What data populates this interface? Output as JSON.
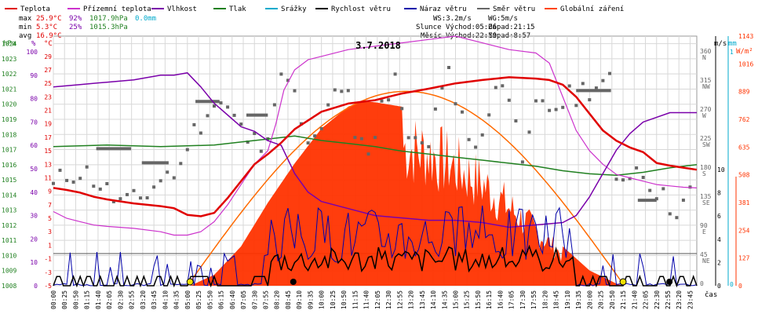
{
  "legend": [
    {
      "label": "Teplota",
      "color": "#e00000"
    },
    {
      "label": "Přízemní teplota",
      "color": "#cc33cc"
    },
    {
      "label": "Vlhkost",
      "color": "#7a00aa"
    },
    {
      "label": "Tlak",
      "color": "#208020"
    },
    {
      "label": "Srážky",
      "color": "#00aacc"
    },
    {
      "label": "Rychlost větru",
      "color": "#000000"
    },
    {
      "label": "Náraz větru",
      "color": "#0000aa"
    },
    {
      "label": "Směr větru",
      "color": "#666666"
    },
    {
      "label": "Globální záření",
      "color": "#ff4400"
    }
  ],
  "stats": {
    "rows": [
      {
        "label": "max",
        "temp": "25.9°C",
        "hum": "92%",
        "press": "1017.9hPa",
        "rain": "0.0mm"
      },
      {
        "label": "min",
        "temp": "5.3°C",
        "hum": "25%",
        "press": "1015.3hPa",
        "rain": ""
      },
      {
        "label": "avg",
        "temp": "16.9°C",
        "hum": "",
        "press": "",
        "rain": ""
      }
    ],
    "wind": "WS:3.2m/s",
    "gust": "WG:5m/s",
    "sun_label": "Slunce",
    "sunrise": "Východ:05:06",
    "sunset": "Západ:21:15",
    "moon_label": "Měsíc",
    "moonrise": "Východ:22:59",
    "moonset": "Západ:8:57"
  },
  "date": "3.7.2018",
  "colors": {
    "temp": "#e00000",
    "ground": "#cc33cc",
    "hum": "#7a00aa",
    "press": "#208020",
    "rain": "#00aacc",
    "wind": "#000000",
    "gust": "#0000aa",
    "dir": "#666666",
    "rad": "#ff3300",
    "radmax": "#ff6a00",
    "grid": "#d8d8d8",
    "sun": "#f0e000"
  },
  "axis_labels": {
    "hpa": "hPa",
    "pct": "%",
    "degc": "°C",
    "ms": "m/s",
    "mm": "mm",
    "wm2": "W/m²",
    "time": "čas"
  },
  "chart_data": {
    "type": "line",
    "x_unit": "time of day",
    "x_ticks": [
      "00:00",
      "00:25",
      "00:50",
      "01:15",
      "01:40",
      "02:05",
      "02:30",
      "02:55",
      "03:20",
      "03:45",
      "04:10",
      "04:35",
      "05:00",
      "05:25",
      "05:50",
      "06:15",
      "06:40",
      "07:05",
      "07:30",
      "07:55",
      "08:20",
      "08:45",
      "09:10",
      "09:35",
      "10:00",
      "10:25",
      "10:50",
      "11:15",
      "11:40",
      "12:05",
      "12:30",
      "12:55",
      "13:20",
      "13:45",
      "14:10",
      "14:35",
      "15:00",
      "15:25",
      "15:50",
      "16:15",
      "16:40",
      "17:05",
      "17:30",
      "17:55",
      "18:20",
      "18:45",
      "19:10",
      "19:35",
      "20:00",
      "20:25",
      "20:50",
      "21:15",
      "21:40",
      "22:05",
      "22:30",
      "22:55",
      "23:20",
      "23:45"
    ],
    "axes": {
      "pressure_hpa": {
        "range": [
          1008,
          1024.5
        ],
        "ticks": [
          "1024",
          "1023",
          "1022",
          "1021",
          "1020",
          "1019",
          "1018",
          "1017",
          "1016",
          "1015",
          "1014",
          "1013",
          "1012",
          "1011",
          "1010",
          "1009",
          "1008"
        ]
      },
      "humidity_pct": {
        "range": [
          0,
          100
        ],
        "ticks": [
          "100",
          "90",
          "80",
          "70",
          "60",
          "50",
          "40",
          "30",
          "20",
          "10",
          "0"
        ]
      },
      "temperature_c": {
        "range": [
          -5,
          32
        ],
        "ticks": [
          "29",
          "27",
          "25",
          "23",
          "21",
          "19",
          "17",
          "15",
          "13",
          "11",
          "9",
          "7",
          "5",
          "3",
          "1",
          "-1",
          "-3",
          "-5"
        ]
      },
      "wind_dir": {
        "ticks": [
          "360\nN",
          "315\nNW",
          "270\nW",
          "225\nSW",
          "180\nS",
          "135\nSE",
          "90\nE",
          "45\nNE",
          "0"
        ]
      },
      "wind_ms": {
        "range": [
          0,
          10
        ],
        "ticks": [
          "10",
          "8",
          "6",
          "4",
          "2",
          "0"
        ]
      },
      "rain_mm": {
        "range": [
          0,
          1
        ],
        "ticks": [
          "1",
          "0"
        ]
      },
      "radiation_wm2": {
        "range": [
          0,
          1143
        ],
        "ticks": [
          "1143",
          "1016",
          "889",
          "762",
          "635",
          "508",
          "381",
          "254",
          "127",
          "0"
        ]
      }
    },
    "series": [
      {
        "name": "Teplota",
        "axis": "temperature_c",
        "hours": [
          0,
          0.5,
          1,
          1.5,
          2,
          3,
          4,
          4.5,
          5,
          5.5,
          6,
          6.5,
          7,
          7.5,
          8,
          8.5,
          9,
          9.5,
          10,
          11,
          12,
          13,
          14,
          15,
          16,
          17,
          18,
          18.5,
          19,
          19.5,
          20,
          20.5,
          21,
          21.5,
          22,
          22.5,
          23,
          23.5,
          24
        ],
        "values": [
          9.5,
          9.2,
          8.8,
          8.2,
          7.8,
          7.2,
          6.8,
          6.5,
          5.5,
          5.3,
          5.8,
          8,
          10.5,
          13,
          14.5,
          16.2,
          18.2,
          19.5,
          20.8,
          22,
          22.5,
          23.5,
          24.2,
          25,
          25.5,
          25.9,
          25.7,
          25.5,
          24.8,
          23,
          20.5,
          18,
          16.5,
          15.5,
          14.8,
          13.2,
          12.8,
          12.5,
          12.2
        ]
      },
      {
        "name": "Přízemní teplota",
        "axis": "temperature_c",
        "hours": [
          0,
          0.5,
          1,
          1.5,
          2,
          3,
          4,
          4.5,
          5,
          5.5,
          6,
          6.5,
          7,
          7.5,
          8,
          8.3,
          8.6,
          9,
          9.5,
          10,
          11,
          12,
          13,
          14,
          15,
          16,
          17,
          18,
          18.5,
          19,
          19.5,
          20,
          20.5,
          21,
          21.5,
          22,
          22.5,
          23,
          23.5,
          24
        ],
        "values": [
          6,
          5,
          4.5,
          4,
          3.8,
          3.5,
          3,
          2.5,
          2.5,
          3,
          4.5,
          7,
          10,
          13,
          15,
          19,
          24,
          27,
          28.5,
          29,
          30,
          30.5,
          31,
          31.5,
          32,
          31,
          30,
          29.5,
          28,
          23,
          18,
          15,
          13,
          11.5,
          11,
          10.5,
          10,
          9.8,
          9.6,
          9.5
        ]
      },
      {
        "name": "Vlhkost",
        "axis": "humidity_pct",
        "hours": [
          0,
          1,
          2,
          3,
          4,
          4.5,
          5,
          5.5,
          6,
          6.5,
          7,
          7.5,
          8,
          8.5,
          9,
          9.5,
          10,
          11,
          12,
          13,
          14,
          15,
          16,
          17,
          18,
          19,
          19.5,
          20,
          20.5,
          21,
          21.5,
          22,
          22.5,
          23,
          23.5,
          24
        ],
        "values": [
          85,
          86,
          87,
          88,
          90,
          90,
          91,
          85,
          78,
          73,
          68,
          66,
          62,
          60,
          48,
          40,
          36,
          33,
          30,
          29,
          28,
          28,
          27,
          25,
          26,
          27,
          30,
          38,
          48,
          58,
          65,
          70,
          72,
          74,
          74,
          74
        ]
      },
      {
        "name": "Tlak",
        "axis": "pressure_hpa",
        "hours": [
          0,
          2,
          4,
          6,
          7,
          8,
          9,
          10,
          11,
          12,
          13,
          14,
          15,
          16,
          17,
          18,
          19,
          20,
          21,
          22,
          23,
          24
        ],
        "values": [
          1017.2,
          1017.3,
          1017.2,
          1017.3,
          1017.5,
          1017.7,
          1017.9,
          1017.6,
          1017.4,
          1017.2,
          1016.9,
          1016.7,
          1016.5,
          1016.3,
          1016.1,
          1015.9,
          1015.6,
          1015.4,
          1015.3,
          1015.5,
          1015.8,
          1016.0
        ]
      },
      {
        "name": "Globální záření",
        "axis": "radiation_wm2",
        "hours": [
          5.1,
          6,
          7,
          8,
          9,
          10,
          11,
          11.5,
          12,
          13,
          14,
          15,
          16,
          17,
          18,
          19,
          20,
          21,
          21.25
        ],
        "values": [
          0,
          50,
          180,
          380,
          560,
          720,
          820,
          845,
          840,
          820,
          780,
          700,
          600,
          460,
          320,
          180,
          70,
          10,
          0
        ]
      },
      {
        "name": "Rychlost větru",
        "axis": "wind_ms",
        "range_ms": [
          0,
          4.5
        ]
      },
      {
        "name": "Náraz větru",
        "axis": "wind_ms",
        "range_ms": [
          0,
          8
        ]
      },
      {
        "name": "Směr větru",
        "axis": "wind_dir",
        "unit": "degrees"
      }
    ]
  }
}
